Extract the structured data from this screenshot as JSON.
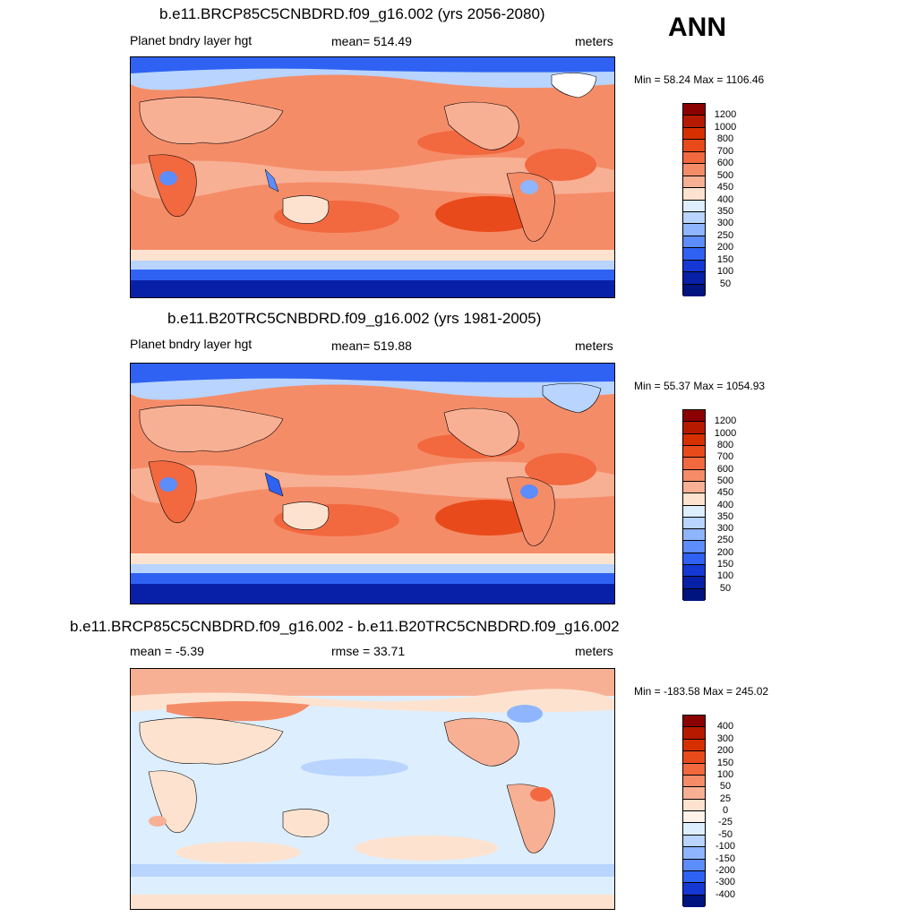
{
  "season": "ANN",
  "panels": [
    {
      "title": "b.e11.BRCP85C5CNBDRD.f09_g16.002 (yrs 2056-2080)",
      "left_label": "Planet bndry layer hgt",
      "center_label": "mean= 514.49",
      "units": "meters",
      "minmax": "Min =  58.24 Max = 1106.46",
      "colorbar": {
        "labels": [
          "1200",
          "1000",
          "800",
          "700",
          "600",
          "500",
          "450",
          "400",
          "350",
          "300",
          "250",
          "200",
          "150",
          "100",
          "50"
        ],
        "colors": [
          "#8b0000",
          "#b51a00",
          "#d73000",
          "#e94a1b",
          "#f2683f",
          "#f58c68",
          "#f8b095",
          "#fde3cf",
          "#ddeeff",
          "#b8d4ff",
          "#8fb5ff",
          "#5d8cfb",
          "#2f62f2",
          "#1538d4",
          "#0820a8",
          "#001480"
        ]
      }
    },
    {
      "title": "b.e11.B20TRC5CNBDRD.f09_g16.002 (yrs 1981-2005)",
      "left_label": "Planet bndry layer hgt",
      "center_label": "mean= 519.88",
      "units": "meters",
      "minmax": "Min =  55.37 Max = 1054.93",
      "colorbar": {
        "labels": [
          "1200",
          "1000",
          "800",
          "700",
          "600",
          "500",
          "450",
          "400",
          "350",
          "300",
          "250",
          "200",
          "150",
          "100",
          "50"
        ],
        "colors": [
          "#8b0000",
          "#b51a00",
          "#d73000",
          "#e94a1b",
          "#f2683f",
          "#f58c68",
          "#f8b095",
          "#fde3cf",
          "#ddeeff",
          "#b8d4ff",
          "#8fb5ff",
          "#5d8cfb",
          "#2f62f2",
          "#1538d4",
          "#0820a8",
          "#001480"
        ]
      }
    },
    {
      "title": "b.e11.BRCP85C5CNBDRD.f09_g16.002 - b.e11.B20TRC5CNBDRD.f09_g16.002",
      "left_label": "mean =  -5.39",
      "center_label": "rmse =  33.71",
      "units": "meters",
      "minmax": "Min = -183.58 Max = 245.02",
      "colorbar": {
        "labels": [
          "400",
          "300",
          "200",
          "150",
          "100",
          "50",
          "25",
          "0",
          "-25",
          "-50",
          "-100",
          "-150",
          "-200",
          "-300",
          "-400"
        ],
        "colors": [
          "#8b0000",
          "#b51a00",
          "#d73000",
          "#e94a1b",
          "#f2683f",
          "#f58c68",
          "#f8b095",
          "#fde3cf",
          "#fff2e8",
          "#ddeeff",
          "#b8d4ff",
          "#8fb5ff",
          "#5d8cfb",
          "#2f62f2",
          "#1538d4",
          "#001480"
        ]
      }
    }
  ]
}
